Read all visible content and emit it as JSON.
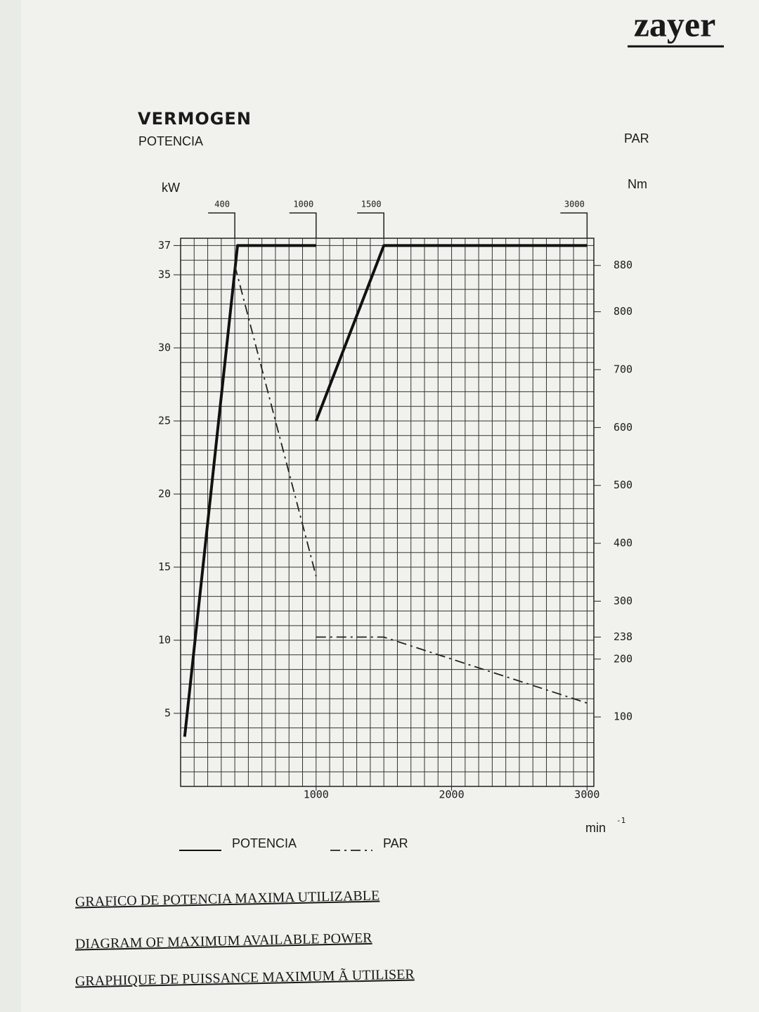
{
  "chart_data": {
    "type": "line",
    "brand": "zayer",
    "y_label_top": "VERMOGEN",
    "y_label": "POTENCIA",
    "y_unit": "kW",
    "y2_label": "PAR",
    "y2_unit": "Nm",
    "x_unit": "min",
    "x_unit_exp": "-1",
    "xlim": [
      0,
      3050
    ],
    "xticks": [
      1000,
      2000,
      3000
    ],
    "top_ticks": [
      400,
      1000,
      1500,
      3000
    ],
    "ylim": [
      0,
      37.5
    ],
    "yticks": [
      5,
      10,
      15,
      20,
      25,
      30,
      35,
      37
    ],
    "y2lim": [
      -20,
      927
    ],
    "y2ticks": [
      100,
      200,
      238,
      300,
      400,
      500,
      600,
      700,
      800,
      880
    ],
    "grid": true,
    "grid_x_step": 100,
    "grid_y_step": 1,
    "series": [
      {
        "name": "POTENCIA",
        "color": "#111111",
        "style": "solid",
        "x": [
          30,
          420,
          1000,
          1000,
          1000,
          1500,
          3000
        ],
        "values": [
          3.4,
          37,
          37,
          null,
          25,
          37,
          37
        ]
      },
      {
        "name": "PAR",
        "color": "#222222",
        "style": "dashdot",
        "axis": "y2",
        "x": [
          400,
          1000,
          1000,
          1000,
          1500,
          3000
        ],
        "values": [
          880,
          343,
          null,
          238,
          238,
          124
        ]
      }
    ],
    "captions": [
      "GRAFICO DE POTENCIA MAXIMA UTILIZABLE",
      "DIAGRAM OF MAXIMUM AVAILABLE POWER",
      "GRAPHIQUE DE PUISSANCE MAXIMUM Ã UTILISER"
    ]
  }
}
